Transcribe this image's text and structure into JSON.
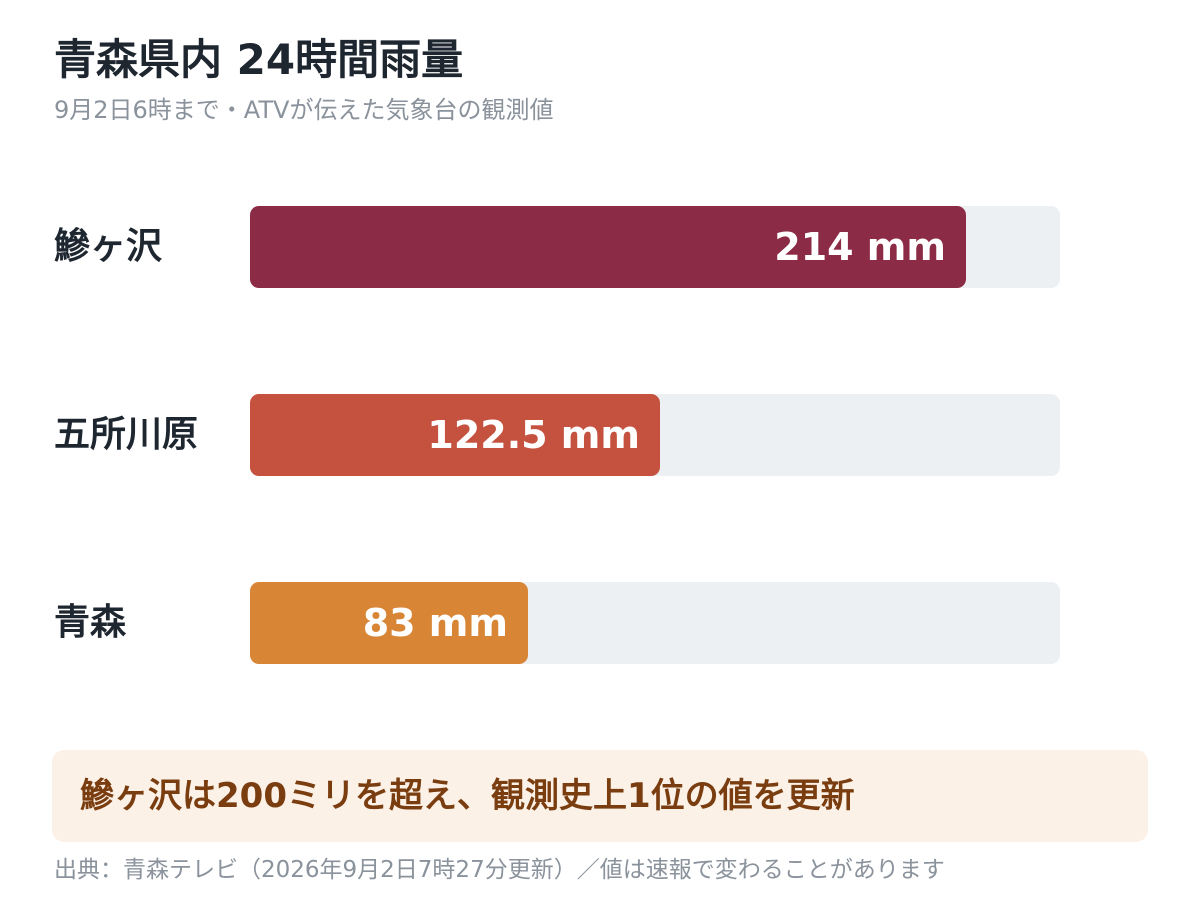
{
  "title": "青森県内 24時間雨量",
  "subtitle": "9月2日6時まで・ATVが伝えた気象台の観測値",
  "chart_data": {
    "type": "bar",
    "orientation": "horizontal",
    "title": "青森県内 24時間雨量",
    "subtitle": "9月2日6時まで・ATVが伝えた気象台の観測値",
    "categories": [
      "鰺ヶ沢",
      "五所川原",
      "青森"
    ],
    "values": [
      214,
      122.5,
      83
    ],
    "value_labels": [
      "214 mm",
      "122.5 mm",
      "83 mm"
    ],
    "unit": "mm",
    "xlim": [
      0,
      242
    ],
    "colors": [
      "#8b2b45",
      "#c5513f",
      "#d88535"
    ],
    "track_color": "#edf0f3",
    "grid": false,
    "legend": "none"
  },
  "note": "鰺ヶ沢は200ミリを超え、観測史上1位の値を更新",
  "source": "出典：青森テレビ（2026年9月2日7時27分更新）／値は速報で変わることがあります"
}
